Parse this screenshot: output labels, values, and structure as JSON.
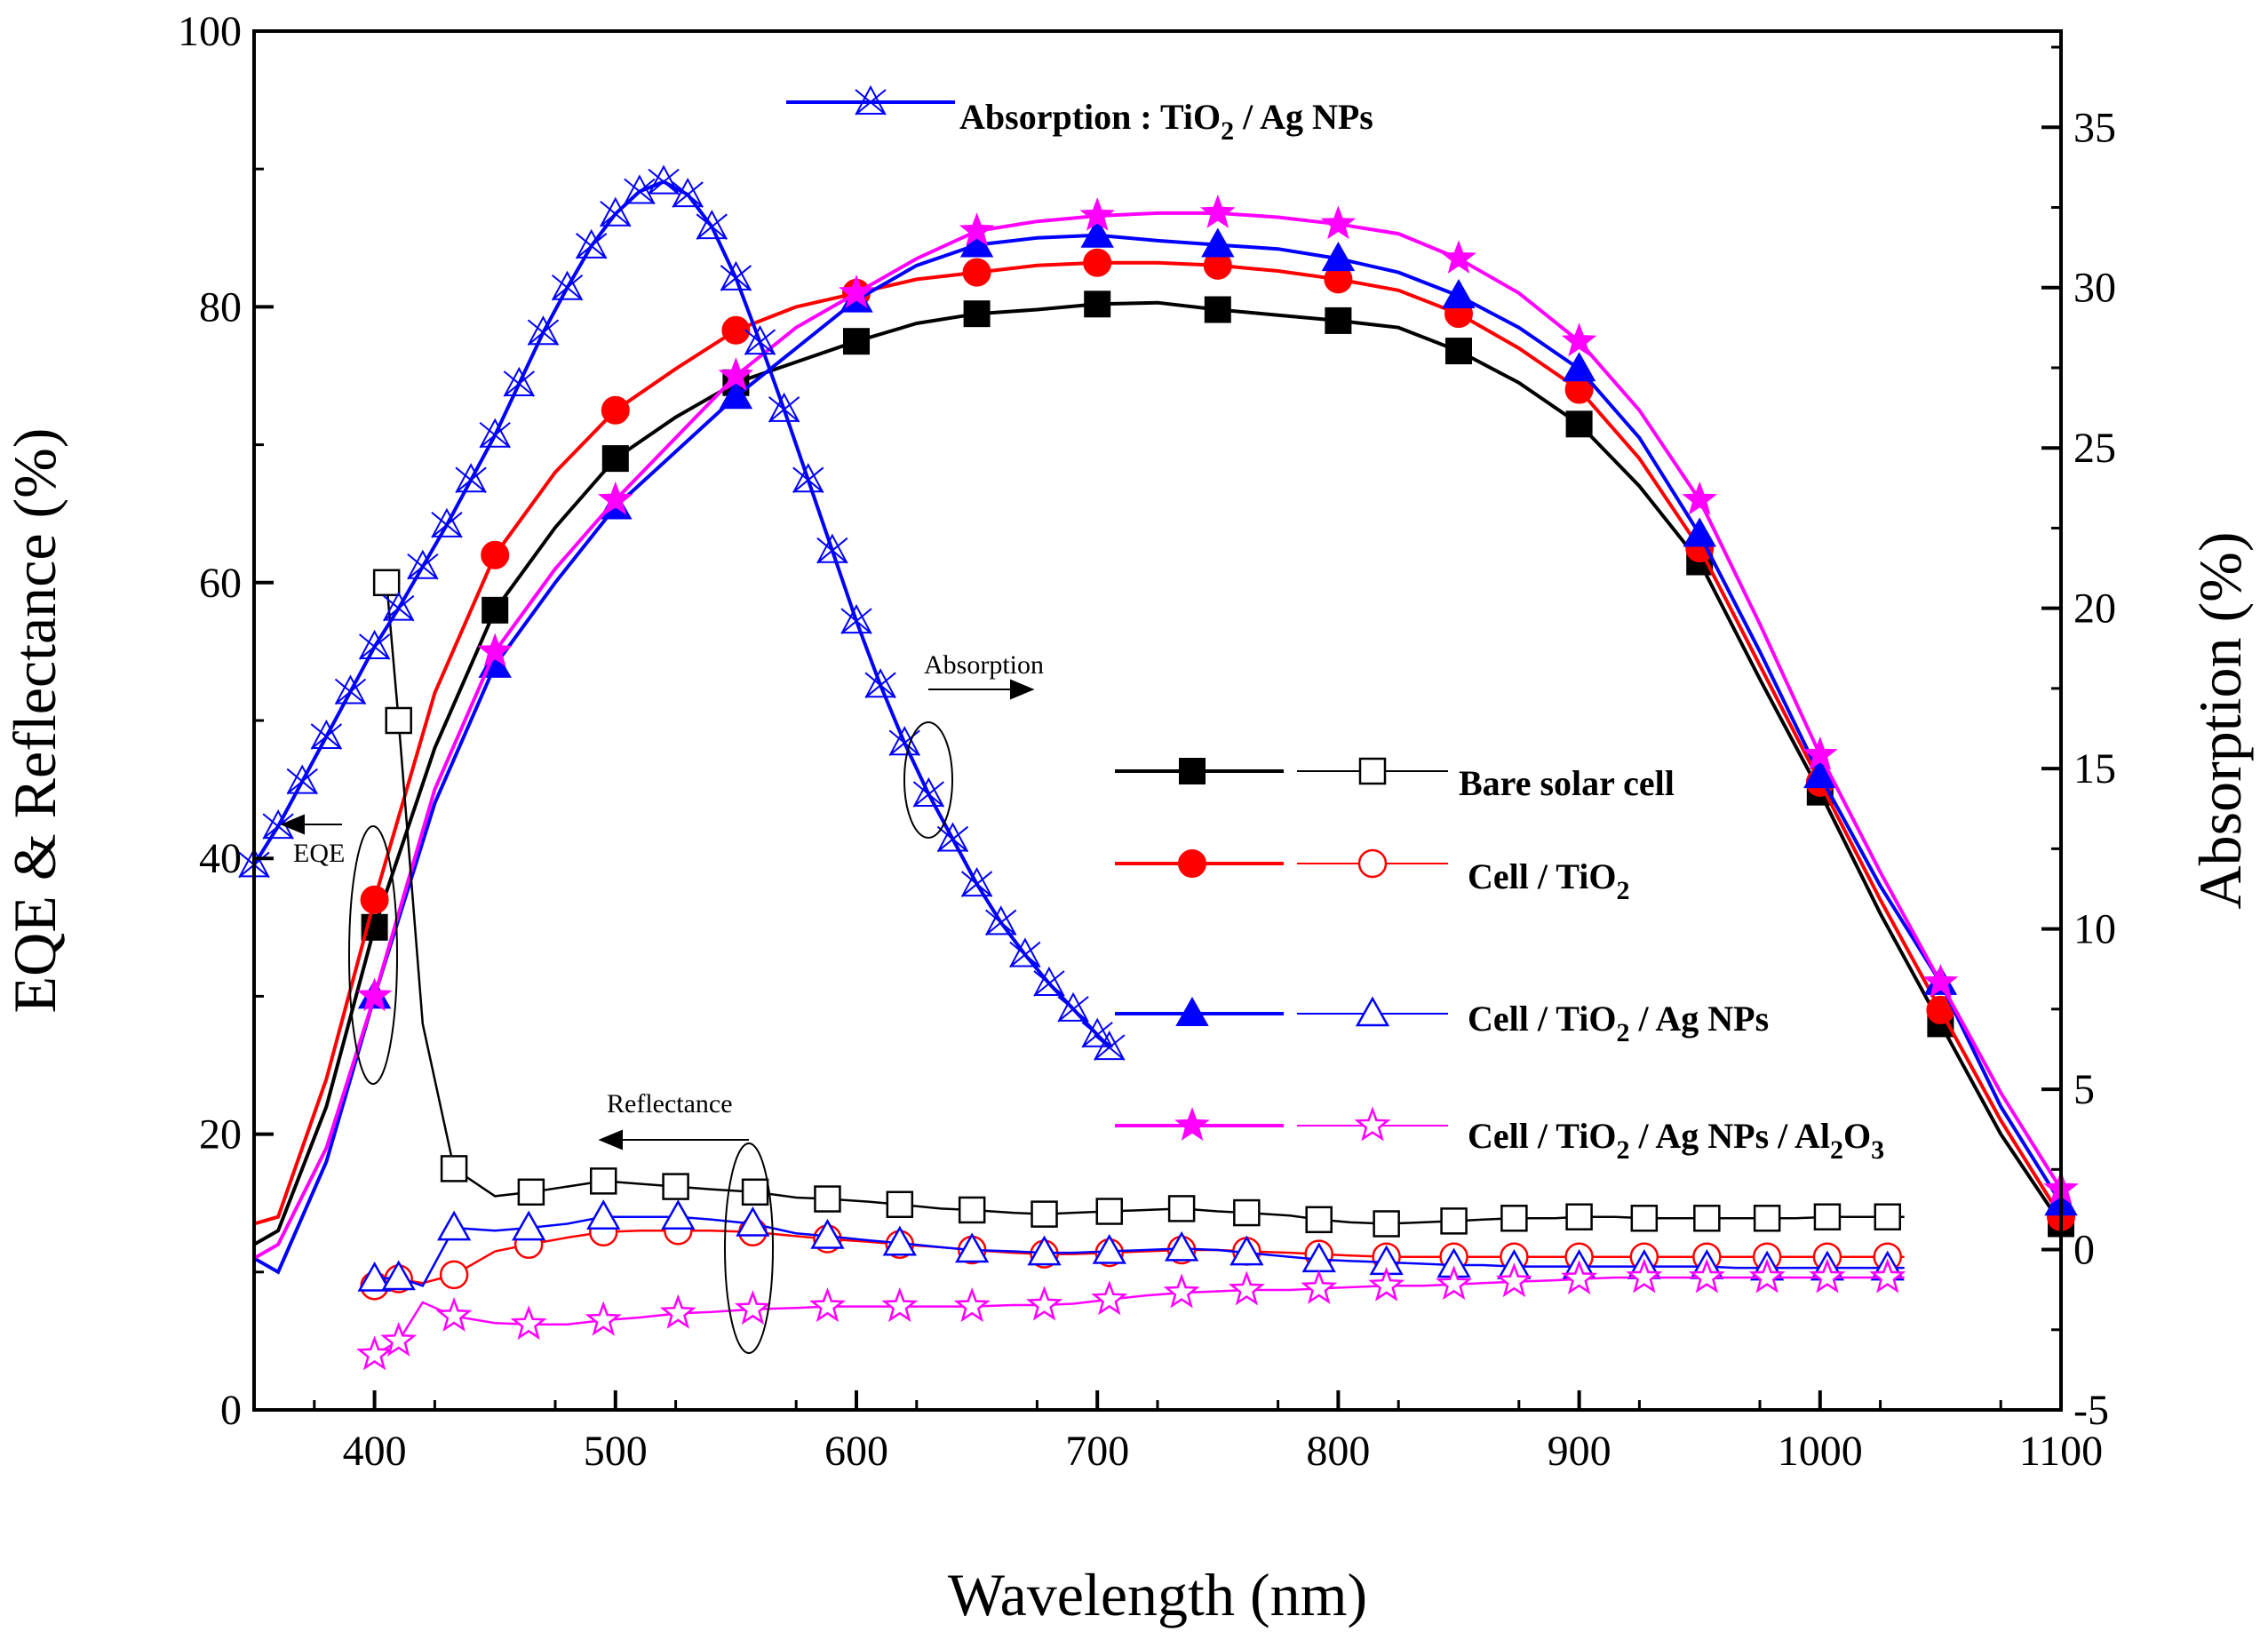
{
  "chart_data": {
    "type": "line",
    "xlabel": "Wavelength (nm)",
    "ylabel": "EQE & Reflectance (%)",
    "y2label": "Absorption (%)",
    "xlim": [
      350,
      1100
    ],
    "ylim": [
      0,
      100
    ],
    "y2lim": [
      -5,
      38
    ],
    "x_ticks": [
      400,
      500,
      600,
      700,
      800,
      900,
      1000,
      1100
    ],
    "y_ticks": [
      0,
      20,
      40,
      60,
      80,
      100
    ],
    "y2_ticks": [
      -5,
      0,
      5,
      10,
      15,
      20,
      25,
      30,
      35
    ],
    "legend": {
      "bare": "Bare solar cell",
      "tio2": {
        "prefix": "Cell / TiO",
        "sub": "2"
      },
      "ag": {
        "prefix": "Cell / TiO",
        "sub": "2",
        "suffix": " / Ag NPs"
      },
      "al": {
        "prefix": "Cell / TiO",
        "sub": "2",
        "mid": " / Ag NPs / Al",
        "sub2": "2",
        "mid2": "O",
        "sub3": "3"
      },
      "absorption": {
        "prefix": "Absorption : TiO",
        "sub": "2",
        "suffix": " / Ag NPs"
      }
    },
    "annotations": {
      "eqe": "EQE",
      "reflectance": "Reflectance",
      "absorption": "Absorption"
    },
    "eqe_x": [
      350,
      360,
      380,
      400,
      425,
      450,
      475,
      500,
      525,
      550,
      575,
      600,
      625,
      650,
      675,
      700,
      725,
      750,
      775,
      800,
      825,
      850,
      875,
      900,
      925,
      950,
      975,
      1000,
      1025,
      1050,
      1075,
      1100
    ],
    "eqe_series": [
      {
        "name": "Bare solar cell",
        "color": "#000000",
        "marker": "square",
        "values": [
          12,
          13,
          22,
          35,
          48,
          58,
          64,
          69,
          72,
          74.5,
          76,
          77.5,
          78.8,
          79.5,
          79.8,
          80.2,
          80.3,
          79.8,
          79.4,
          79.0,
          78.5,
          76.8,
          74.5,
          71.5,
          67,
          61.5,
          53,
          44.8,
          36,
          28,
          20,
          13.5
        ]
      },
      {
        "name": "Cell / TiO2",
        "color": "#ff0000",
        "marker": "circle",
        "values": [
          13.5,
          14,
          24,
          37,
          52,
          62,
          68,
          72.5,
          75.5,
          78.3,
          80,
          81,
          82,
          82.5,
          83,
          83.2,
          83.2,
          83.0,
          82.6,
          82.0,
          81.2,
          79.5,
          77,
          74,
          69,
          62.5,
          54,
          45.5,
          37,
          29,
          21,
          14
        ]
      },
      {
        "name": "Cell / TiO2 / Ag NPs",
        "color": "#0000ff",
        "marker": "triangle",
        "values": [
          11,
          10,
          18,
          30,
          44,
          54,
          60,
          65.5,
          69.5,
          73.5,
          77,
          80.5,
          83,
          84.5,
          85,
          85.2,
          84.8,
          84.5,
          84.2,
          83.5,
          82.5,
          80.8,
          78.5,
          75.5,
          70.5,
          63.5,
          55,
          46,
          38,
          31,
          22,
          15
        ]
      },
      {
        "name": "Cell / TiO2 / Ag NPs / Al2O3",
        "color": "#ff00ff",
        "marker": "star",
        "values": [
          11,
          12,
          19,
          30,
          45,
          55,
          61,
          66,
          70.5,
          75,
          78.5,
          81,
          83.5,
          85.5,
          86.2,
          86.6,
          86.8,
          86.8,
          86.5,
          86.0,
          85.3,
          83.5,
          81,
          77.5,
          72.5,
          66,
          57,
          47.5,
          39,
          31,
          23,
          16
        ]
      }
    ],
    "reflectance_series": [
      {
        "name": "Bare solar cell",
        "color": "#000000",
        "x": [
          405,
          410,
          420,
          433,
          450,
          465,
          480,
          495,
          510,
          525,
          540,
          558,
          575,
          588,
          605,
          618,
          635,
          648,
          665,
          678,
          690,
          705,
          720,
          735,
          750,
          762,
          780,
          792,
          805,
          820,
          835,
          848,
          860,
          873,
          890,
          900,
          915,
          927,
          940,
          953,
          965,
          978,
          990,
          1003,
          1015,
          1028,
          1035
        ],
        "values": [
          60,
          50,
          28,
          17.5,
          15.5,
          15.8,
          16.2,
          16.6,
          16.4,
          16.2,
          16.0,
          15.8,
          15.4,
          15.3,
          15.1,
          14.9,
          14.6,
          14.5,
          14.3,
          14.2,
          14.3,
          14.4,
          14.5,
          14.6,
          14.4,
          14.3,
          14.1,
          13.8,
          13.6,
          13.5,
          13.6,
          13.7,
          13.8,
          13.9,
          13.9,
          14.0,
          14.0,
          13.9,
          13.9,
          13.9,
          13.9,
          13.9,
          13.9,
          14.0,
          14.0,
          14.0,
          14.0
        ]
      },
      {
        "name": "Cell / TiO2",
        "color": "#ff0000",
        "x": [
          400,
          410,
          420,
          433,
          450,
          464,
          480,
          495,
          510,
          526,
          540,
          557,
          575,
          588,
          605,
          618,
          635,
          648,
          665,
          678,
          690,
          705,
          720,
          735,
          750,
          762,
          780,
          792,
          805,
          820,
          835,
          848,
          860,
          873,
          890,
          900,
          915,
          927,
          940,
          953,
          965,
          978,
          990,
          1003,
          1015,
          1028,
          1035
        ],
        "values": [
          9,
          9.5,
          9.2,
          9.8,
          11.5,
          12.0,
          12.5,
          12.9,
          13.0,
          13.0,
          13.0,
          12.9,
          12.6,
          12.4,
          12.2,
          12.0,
          11.8,
          11.6,
          11.4,
          11.3,
          11.3,
          11.4,
          11.5,
          11.6,
          11.6,
          11.5,
          11.4,
          11.3,
          11.2,
          11.1,
          11.1,
          11.1,
          11.1,
          11.1,
          11.1,
          11.1,
          11.1,
          11.1,
          11.1,
          11.1,
          11.1,
          11.1,
          11.1,
          11.1,
          11.1,
          11.1,
          11.1
        ]
      },
      {
        "name": "Cell / TiO2 / Ag NPs",
        "color": "#0000ff",
        "x": [
          400,
          410,
          420,
          433,
          450,
          464,
          480,
          495,
          510,
          526,
          540,
          557,
          575,
          588,
          605,
          618,
          635,
          648,
          665,
          678,
          690,
          705,
          720,
          735,
          750,
          762,
          780,
          792,
          805,
          820,
          835,
          848,
          860,
          873,
          890,
          900,
          915,
          927,
          940,
          953,
          965,
          978,
          990,
          1003,
          1015,
          1028,
          1035
        ],
        "values": [
          9.5,
          9.6,
          9.0,
          13.2,
          13.0,
          13.2,
          13.5,
          14.0,
          14.0,
          14.0,
          13.8,
          13.5,
          12.8,
          12.6,
          12.3,
          12.1,
          11.8,
          11.6,
          11.5,
          11.4,
          11.4,
          11.5,
          11.6,
          11.7,
          11.6,
          11.4,
          11.1,
          10.9,
          10.8,
          10.7,
          10.6,
          10.5,
          10.5,
          10.4,
          10.4,
          10.4,
          10.4,
          10.4,
          10.4,
          10.4,
          10.3,
          10.3,
          10.3,
          10.3,
          10.3,
          10.3,
          10.3
        ]
      },
      {
        "name": "Cell / TiO2 / Ag NPs / Al2O3",
        "color": "#ff00ff",
        "x": [
          400,
          410,
          420,
          433,
          450,
          464,
          480,
          495,
          510,
          526,
          540,
          557,
          575,
          588,
          605,
          618,
          635,
          648,
          665,
          678,
          690,
          705,
          720,
          735,
          750,
          762,
          780,
          792,
          805,
          820,
          835,
          848,
          860,
          873,
          890,
          900,
          915,
          927,
          940,
          953,
          965,
          978,
          990,
          1003,
          1015,
          1028,
          1035
        ],
        "values": [
          4,
          5,
          7.8,
          6.8,
          6.3,
          6.2,
          6.2,
          6.5,
          6.7,
          7.0,
          7.1,
          7.3,
          7.4,
          7.5,
          7.5,
          7.5,
          7.5,
          7.5,
          7.6,
          7.6,
          7.7,
          8.0,
          8.3,
          8.5,
          8.6,
          8.7,
          8.7,
          8.8,
          8.9,
          9.0,
          9.0,
          9.1,
          9.2,
          9.3,
          9.4,
          9.5,
          9.6,
          9.6,
          9.6,
          9.6,
          9.6,
          9.6,
          9.6,
          9.6,
          9.6,
          9.6,
          9.6
        ]
      }
    ],
    "absorption_series": {
      "name": "Absorption : TiO2 / Ag NPs",
      "color": "#0000ff",
      "axis": "right",
      "x": [
        350,
        360,
        370,
        380,
        390,
        400,
        410,
        420,
        430,
        440,
        450,
        460,
        470,
        480,
        490,
        500,
        510,
        520,
        530,
        540,
        550,
        560,
        570,
        580,
        590,
        600,
        610,
        620,
        630,
        640,
        650,
        660,
        670,
        680,
        690,
        700,
        705
      ],
      "values": [
        12.0,
        13.2,
        14.6,
        16.0,
        17.4,
        18.8,
        20.0,
        21.3,
        22.6,
        24.0,
        25.4,
        27.0,
        28.6,
        30.0,
        31.3,
        32.3,
        33.0,
        33.3,
        32.9,
        31.9,
        30.3,
        28.3,
        26.2,
        24.0,
        21.8,
        19.6,
        17.6,
        15.8,
        14.2,
        12.8,
        11.4,
        10.2,
        9.2,
        8.3,
        7.5,
        6.7,
        6.3
      ]
    }
  }
}
